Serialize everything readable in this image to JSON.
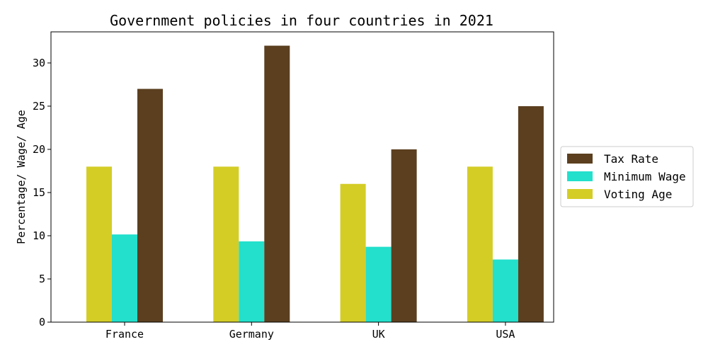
{
  "chart_data": {
    "type": "bar",
    "title": "Government policies in four countries in 2021",
    "xlabel": "",
    "ylabel": "Percentage/ Wage/ Age",
    "categories": [
      "France",
      "Germany",
      "UK",
      "USA"
    ],
    "ylim": [
      0,
      33.6
    ],
    "yticks": [
      0,
      5,
      10,
      15,
      20,
      25,
      30
    ],
    "series": [
      {
        "name": "Voting Age",
        "color": "#d4cd26",
        "values": [
          18,
          18,
          16,
          18
        ]
      },
      {
        "name": "Minimum Wage",
        "color": "#22e0cc",
        "values": [
          10.15,
          9.35,
          8.72,
          7.25
        ]
      },
      {
        "name": "Tax Rate",
        "color": "#5b3f1f",
        "values": [
          27,
          32,
          20,
          25
        ]
      }
    ],
    "legend": {
      "placement": "right",
      "order": [
        "Tax Rate",
        "Minimum Wage",
        "Voting Age"
      ]
    },
    "grid": false
  }
}
